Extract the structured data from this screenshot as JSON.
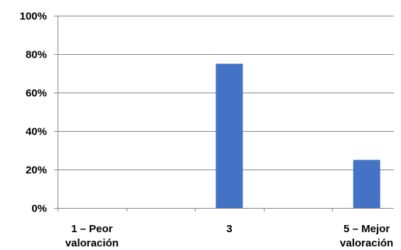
{
  "chart_data": {
    "type": "bar",
    "title": "",
    "xlabel": "",
    "ylabel": "",
    "categories": [
      [
        "1 – Peor",
        "valoración"
      ],
      [
        "",
        ""
      ],
      [
        "3",
        ""
      ],
      [
        "",
        ""
      ],
      [
        "5 – Mejor",
        "valoración"
      ]
    ],
    "values": [
      0,
      0,
      75,
      0,
      25
    ],
    "ylim": [
      0,
      100
    ],
    "yticks": [
      0,
      20,
      40,
      60,
      80,
      100
    ],
    "ytick_labels": [
      "0%",
      "20%",
      "40%",
      "60%",
      "80%",
      "100%"
    ],
    "grid": true,
    "legend": "none",
    "colors": {
      "bar": "#4472C4",
      "grid": "#868686",
      "axis": "#868686"
    }
  }
}
